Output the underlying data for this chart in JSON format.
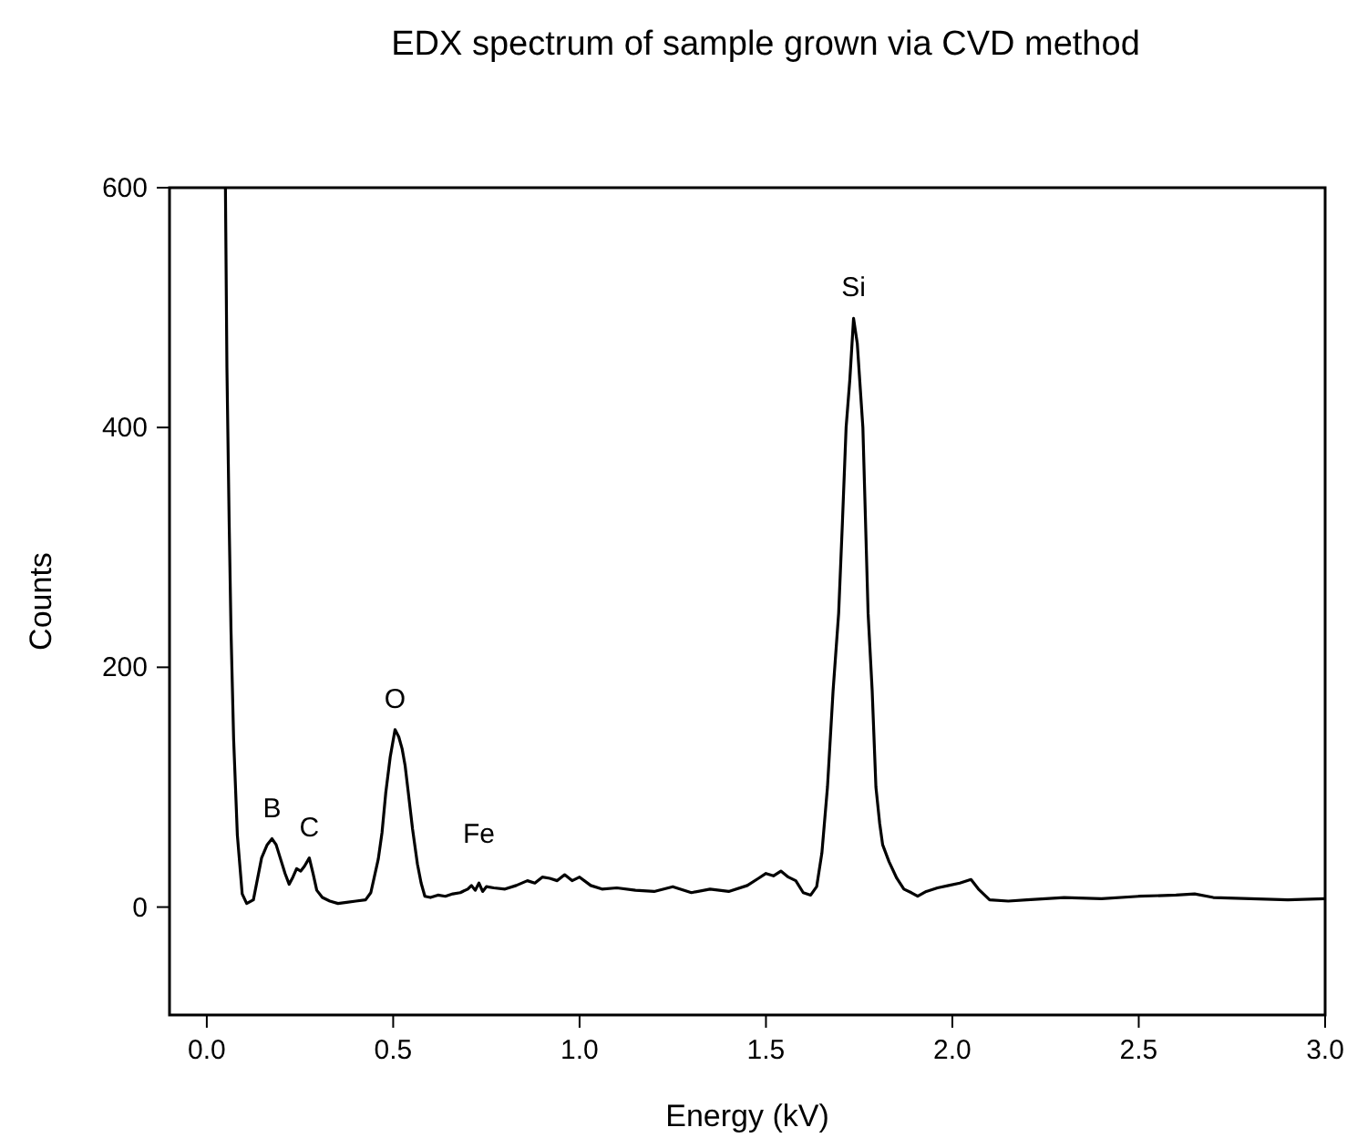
{
  "chart_data": {
    "type": "line",
    "title": "EDX spectrum of sample grown via CVD method",
    "xlabel": "Energy (kV)",
    "ylabel": "Counts",
    "xlim": [
      -0.1,
      3.0
    ],
    "ylim": [
      -90,
      600
    ],
    "xticks": [
      {
        "value": 0,
        "label": "0.0"
      },
      {
        "value": 0.5,
        "label": "0.5"
      },
      {
        "value": 1,
        "label": "1.0"
      },
      {
        "value": 1.5,
        "label": "1.5"
      },
      {
        "value": 2,
        "label": "2.0"
      },
      {
        "value": 2.5,
        "label": "2.5"
      },
      {
        "value": 3,
        "label": "3.0"
      }
    ],
    "yticks": [
      0,
      200,
      400,
      600
    ],
    "grid": false,
    "line_style": "solid",
    "series": [
      {
        "color": "#000000",
        "x": [
          0.05,
          0.054,
          0.06,
          0.065,
          0.072,
          0.082,
          0.095,
          0.107,
          0.125,
          0.147,
          0.162,
          0.175,
          0.186,
          0.197,
          0.21,
          0.221,
          0.231,
          0.241,
          0.252,
          0.262,
          0.275,
          0.285,
          0.295,
          0.31,
          0.33,
          0.352,
          0.375,
          0.4,
          0.426,
          0.44,
          0.45,
          0.46,
          0.47,
          0.48,
          0.492,
          0.505,
          0.515,
          0.524,
          0.532,
          0.54,
          0.552,
          0.565,
          0.575,
          0.585,
          0.6,
          0.62,
          0.64,
          0.66,
          0.68,
          0.7,
          0.71,
          0.72,
          0.73,
          0.74,
          0.75,
          0.77,
          0.8,
          0.83,
          0.86,
          0.88,
          0.9,
          0.92,
          0.94,
          0.96,
          0.98,
          1.0,
          1.03,
          1.06,
          1.1,
          1.15,
          1.2,
          1.25,
          1.3,
          1.35,
          1.4,
          1.45,
          1.48,
          1.5,
          1.52,
          1.54,
          1.56,
          1.58,
          1.6,
          1.62,
          1.636,
          1.65,
          1.665,
          1.68,
          1.695,
          1.705,
          1.715,
          1.725,
          1.735,
          1.745,
          1.76,
          1.774,
          1.785,
          1.795,
          1.805,
          1.813,
          1.83,
          1.851,
          1.87,
          1.89,
          1.907,
          1.93,
          1.96,
          1.99,
          2.02,
          2.05,
          2.07,
          2.1,
          2.15,
          2.2,
          2.3,
          2.4,
          2.5,
          2.6,
          2.65,
          2.7,
          2.8,
          2.9,
          3.0
        ],
        "values": [
          600,
          450,
          321,
          230,
          140,
          60,
          11,
          3,
          6,
          41,
          52,
          57,
          52,
          41,
          28,
          19,
          25,
          32,
          30,
          34,
          41,
          28,
          14,
          8,
          5,
          3,
          4,
          5,
          6,
          12,
          26,
          40,
          62,
          95,
          125,
          148,
          142,
          132,
          118,
          97,
          65,
          36,
          20,
          9,
          8,
          10,
          9,
          11,
          12,
          15,
          18,
          14,
          20,
          13,
          17,
          16,
          15,
          18,
          22,
          20,
          25,
          24,
          22,
          27,
          22,
          25,
          18,
          15,
          16,
          14,
          13,
          17,
          12,
          15,
          13,
          18,
          24,
          28,
          26,
          30,
          25,
          22,
          12,
          10,
          17,
          45,
          100,
          180,
          245,
          320,
          400,
          440,
          491,
          470,
          400,
          245,
          180,
          100,
          70,
          52,
          38,
          24,
          15,
          12,
          9,
          13,
          16,
          18,
          20,
          23,
          15,
          6,
          5,
          6,
          8,
          7,
          9,
          10,
          11,
          8,
          7,
          6,
          7
        ]
      }
    ],
    "annotations": [
      {
        "text": "B",
        "x": 0.175,
        "y": 57
      },
      {
        "text": "C",
        "x": 0.275,
        "y": 41
      },
      {
        "text": "O",
        "x": 0.505,
        "y": 148
      },
      {
        "text": "Fe",
        "x": 0.73,
        "y": 20
      },
      {
        "text": "Si",
        "x": 1.735,
        "y": 491
      }
    ]
  }
}
